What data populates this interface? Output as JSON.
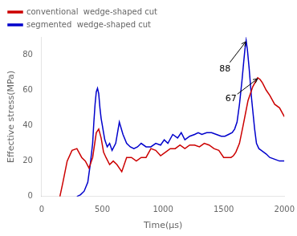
{
  "chart_data": {
    "type": "line",
    "xlabel": "Time(μs)",
    "ylabel": "Effective stress(MPa)",
    "xlim": [
      0,
      2000
    ],
    "ylim": [
      0,
      90
    ],
    "xticks": [
      0,
      500,
      1000,
      1500,
      2000
    ],
    "yticks": [
      0,
      20,
      40,
      60,
      80
    ],
    "grid": false,
    "legend": "upper left",
    "series": [
      {
        "name": "conventional  wedge-shaped cut",
        "color": "#cc0000",
        "x": [
          150,
          175,
          210,
          250,
          290,
          330,
          360,
          390,
          420,
          450,
          470,
          490,
          510,
          530,
          560,
          590,
          620,
          660,
          700,
          740,
          780,
          820,
          860,
          900,
          940,
          980,
          1020,
          1060,
          1100,
          1140,
          1180,
          1220,
          1260,
          1300,
          1340,
          1380,
          1420,
          1460,
          1500,
          1540,
          1560,
          1580,
          1600,
          1630,
          1660,
          1700,
          1740,
          1780,
          1800,
          1820,
          1850,
          1880,
          1920,
          1960,
          2000
        ],
        "values": [
          0,
          8,
          20,
          26,
          27,
          22,
          20,
          16,
          22,
          36,
          38,
          33,
          25,
          22,
          18,
          20,
          18,
          14,
          22,
          22,
          20,
          22,
          22,
          27,
          26,
          23,
          25,
          27,
          27,
          29,
          27,
          29,
          29,
          28,
          30,
          29,
          27,
          26,
          22,
          22,
          22,
          23,
          25,
          30,
          40,
          54,
          62,
          67,
          66,
          64,
          60,
          57,
          52,
          50,
          45
        ]
      },
      {
        "name": "segmented  wedge-shaped cut",
        "color": "#0000cc",
        "x": [
          290,
          320,
          350,
          380,
          400,
          420,
          430,
          440,
          450,
          460,
          470,
          480,
          490,
          500,
          510,
          520,
          540,
          560,
          580,
          610,
          640,
          670,
          700,
          730,
          760,
          790,
          820,
          860,
          900,
          940,
          980,
          1010,
          1040,
          1080,
          1120,
          1150,
          1180,
          1220,
          1260,
          1290,
          1320,
          1360,
          1400,
          1440,
          1480,
          1510,
          1540,
          1570,
          1590,
          1610,
          1630,
          1650,
          1665,
          1675,
          1685,
          1695,
          1710,
          1730,
          1755,
          1770,
          1790,
          1810,
          1830,
          1850,
          1880,
          1920,
          1960,
          2000
        ],
        "values": [
          0,
          1,
          3,
          8,
          18,
          30,
          42,
          52,
          59,
          61,
          58,
          50,
          44,
          40,
          36,
          32,
          28,
          30,
          26,
          30,
          42,
          35,
          30,
          28,
          27,
          28,
          30,
          28,
          28,
          30,
          29,
          32,
          30,
          35,
          33,
          36,
          32,
          34,
          35,
          36,
          35,
          36,
          36,
          35,
          34,
          34,
          35,
          36,
          38,
          42,
          52,
          65,
          76,
          83,
          88,
          83,
          72,
          55,
          38,
          30,
          27,
          26,
          25,
          24,
          22,
          21,
          20,
          20
        ]
      }
    ],
    "annotations": [
      {
        "text": "88",
        "xy": [
          1690,
          88
        ],
        "xytext": [
          1510,
          72
        ]
      },
      {
        "text": "67",
        "xy": [
          1790,
          67
        ],
        "xytext": [
          1560,
          55
        ]
      }
    ]
  }
}
